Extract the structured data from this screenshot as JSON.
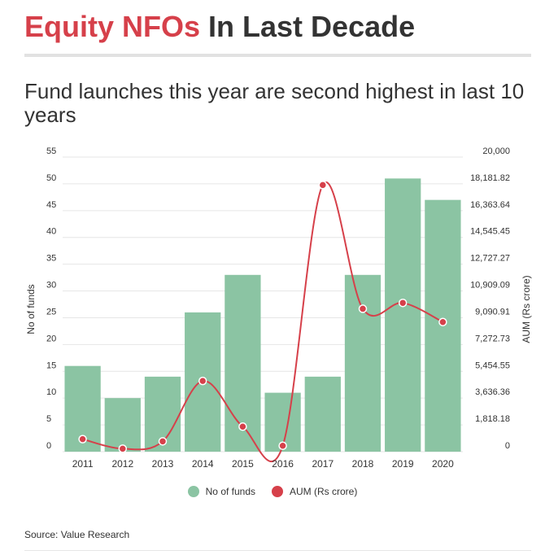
{
  "header": {
    "title_accent": "Equity NFOs",
    "title_rest": " In Last Decade",
    "subtitle": "Fund launches this year are second highest in last 10 years"
  },
  "footer": {
    "source": "Source: Value Research"
  },
  "colors": {
    "bar": "#8bc4a3",
    "line": "#d6404a",
    "accent": "#d6404a",
    "text": "#333333",
    "grid": "#e6e6e6"
  },
  "chart_data": {
    "type": "bar",
    "categories": [
      "2011",
      "2012",
      "2013",
      "2014",
      "2015",
      "2016",
      "2017",
      "2018",
      "2019",
      "2020"
    ],
    "series": [
      {
        "name": "No of funds",
        "type": "bar",
        "axis": "left",
        "values": [
          16,
          10,
          14,
          26,
          33,
          11,
          14,
          33,
          51,
          47
        ]
      },
      {
        "name": "AUM (Rs crore)",
        "type": "line",
        "axis": "right",
        "values": [
          850,
          200,
          700,
          4800,
          1700,
          400,
          18100,
          9700,
          10100,
          8800
        ]
      }
    ],
    "ylabel": "No of funds",
    "y2label": "AUM (Rs crore)",
    "ylim": [
      0,
      55
    ],
    "y2lim": [
      0,
      20000
    ],
    "yticks": [
      "0",
      "5",
      "10",
      "15",
      "20",
      "25",
      "30",
      "35",
      "40",
      "45",
      "50",
      "55"
    ],
    "y2ticks": [
      "0",
      "1,818.18",
      "3,636.36",
      "5,454.55",
      "7,272.73",
      "9,090.91",
      "10,909.09",
      "12,727.27",
      "14,545.45",
      "16,363.64",
      "18,181.82",
      "20,000"
    ],
    "legend": "bottom",
    "grid": true
  }
}
